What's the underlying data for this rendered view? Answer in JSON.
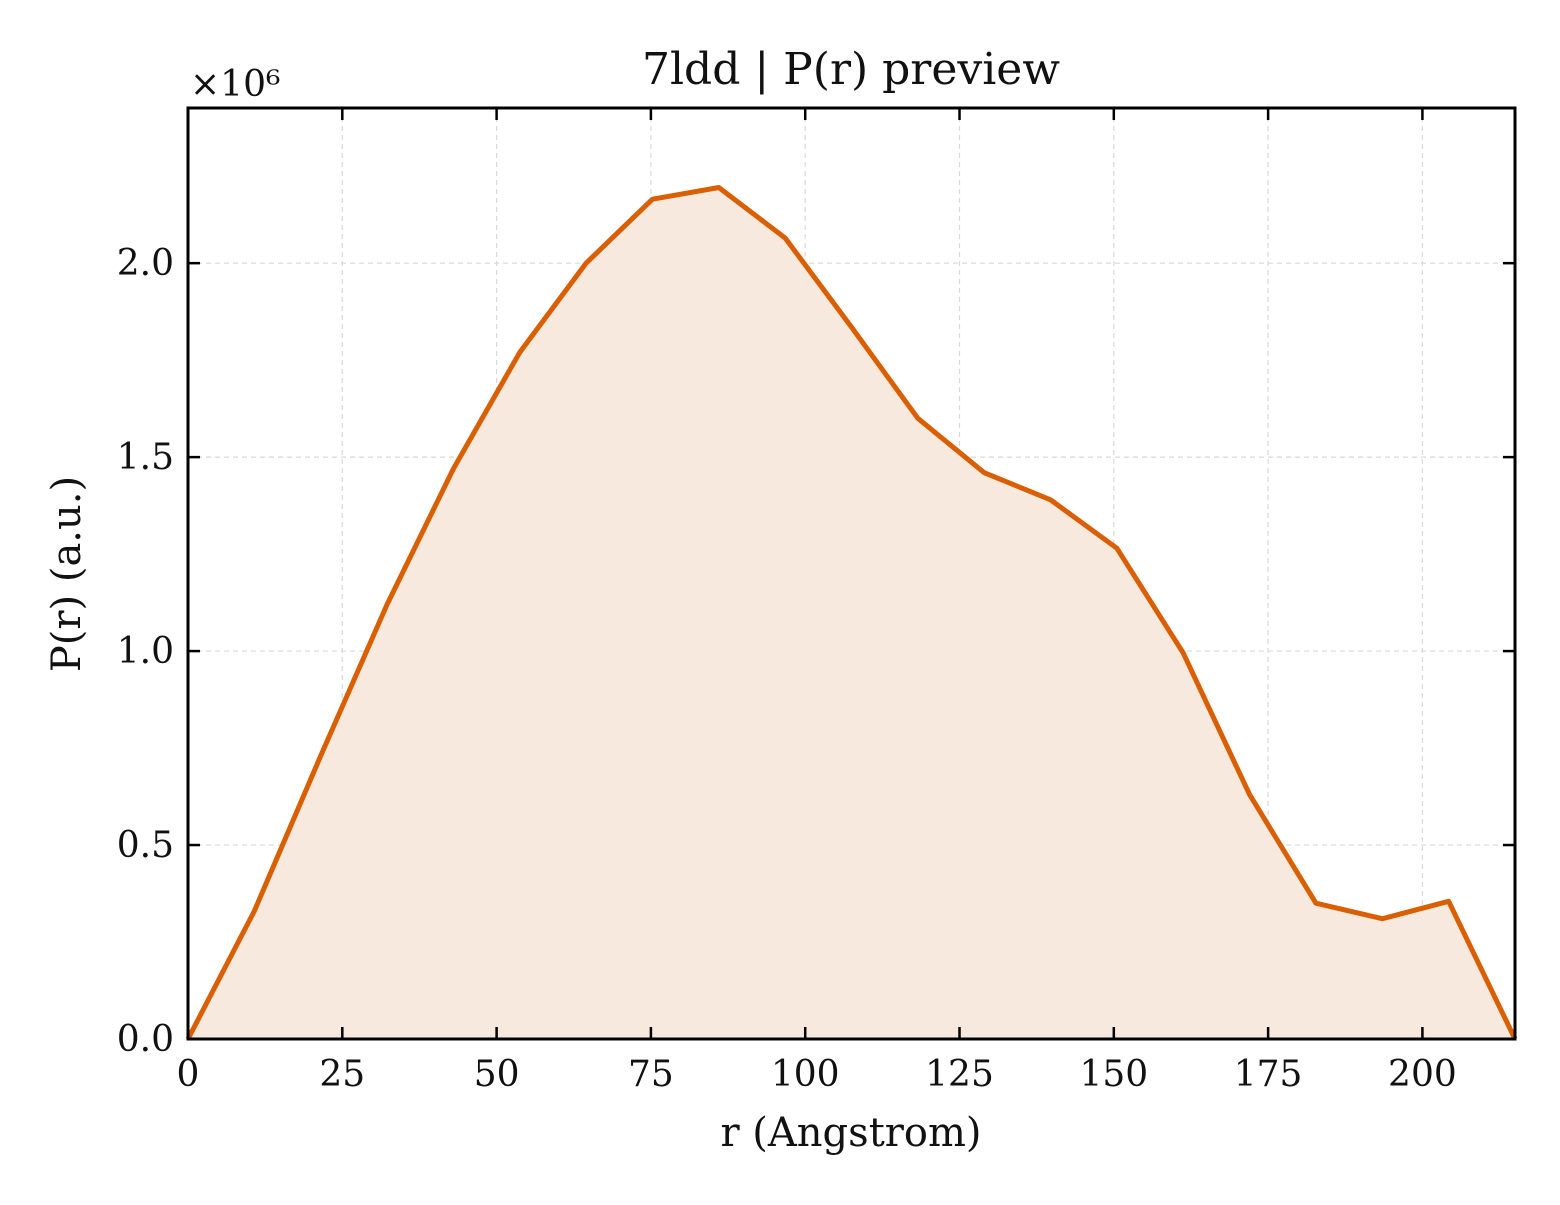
{
  "chart_data": {
    "type": "area",
    "title": "7ldd | P(r) preview",
    "xlabel": "r (Angstrom)",
    "ylabel": "P(r) (a.u.)",
    "y_offset_label": "×10⁶",
    "y_scale": 1000000,
    "xlim": [
      0,
      215
    ],
    "ylim": [
      0,
      2.4
    ],
    "x_ticks": [
      0,
      25,
      50,
      75,
      100,
      125,
      150,
      175,
      200
    ],
    "x_tick_labels": [
      "0",
      "25",
      "50",
      "75",
      "100",
      "125",
      "150",
      "175",
      "200"
    ],
    "y_ticks": [
      0.0,
      0.5,
      1.0,
      1.5,
      2.0
    ],
    "y_tick_labels": [
      "0.0",
      "0.5",
      "1.0",
      "1.5",
      "2.0"
    ],
    "grid": true,
    "series": [
      {
        "color": "#d95f02",
        "fill_color": "#f8e9de",
        "x": [
          0,
          10.75,
          21.5,
          32.25,
          43.0,
          53.75,
          64.5,
          75.25,
          86.0,
          96.75,
          107.5,
          118.25,
          129.0,
          139.75,
          150.5,
          161.25,
          172.0,
          182.75,
          193.5,
          204.25,
          215.0
        ],
        "y": [
          0.0,
          0.33,
          0.73,
          1.12,
          1.47,
          1.77,
          2.0,
          2.165,
          2.195,
          2.065,
          1.835,
          1.6,
          1.46,
          1.39,
          1.265,
          0.995,
          0.63,
          0.35,
          0.31,
          0.355,
          0.0
        ]
      }
    ]
  }
}
